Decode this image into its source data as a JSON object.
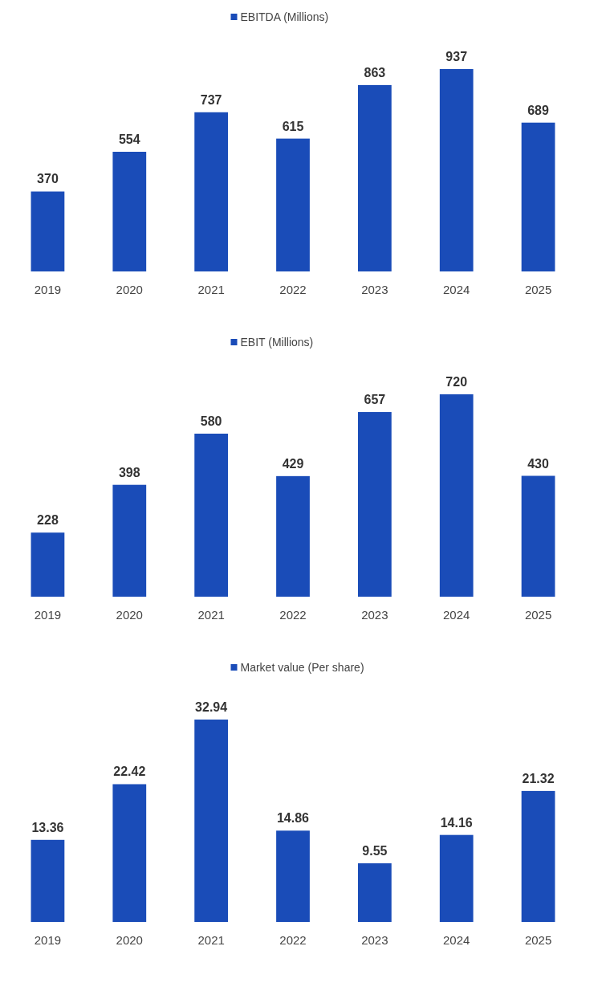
{
  "chart_data": [
    {
      "type": "bar",
      "categories": [
        "2019",
        "2020",
        "2021",
        "2022",
        "2023",
        "2024",
        "2025"
      ],
      "series": [
        {
          "name": "EBITDA (Millions)",
          "color": "#1a4cb8",
          "values": [
            370,
            554,
            737,
            615,
            863,
            937,
            689
          ]
        }
      ],
      "data_labels": true,
      "legend": "top"
    },
    {
      "type": "bar",
      "categories": [
        "2019",
        "2020",
        "2021",
        "2022",
        "2023",
        "2024",
        "2025"
      ],
      "series": [
        {
          "name": "EBIT (Millions)",
          "color": "#1a4cb8",
          "values": [
            228,
            398,
            580,
            429,
            657,
            720,
            430
          ]
        }
      ],
      "data_labels": true,
      "legend": "top"
    },
    {
      "type": "bar",
      "categories": [
        "2019",
        "2020",
        "2021",
        "2022",
        "2023",
        "2024",
        "2025"
      ],
      "series": [
        {
          "name": "Market value (Per share)",
          "color": "#1a4cb8",
          "values": [
            13.36,
            22.42,
            32.94,
            14.86,
            9.55,
            14.16,
            21.32
          ]
        }
      ],
      "data_labels": true,
      "legend": "top"
    }
  ]
}
